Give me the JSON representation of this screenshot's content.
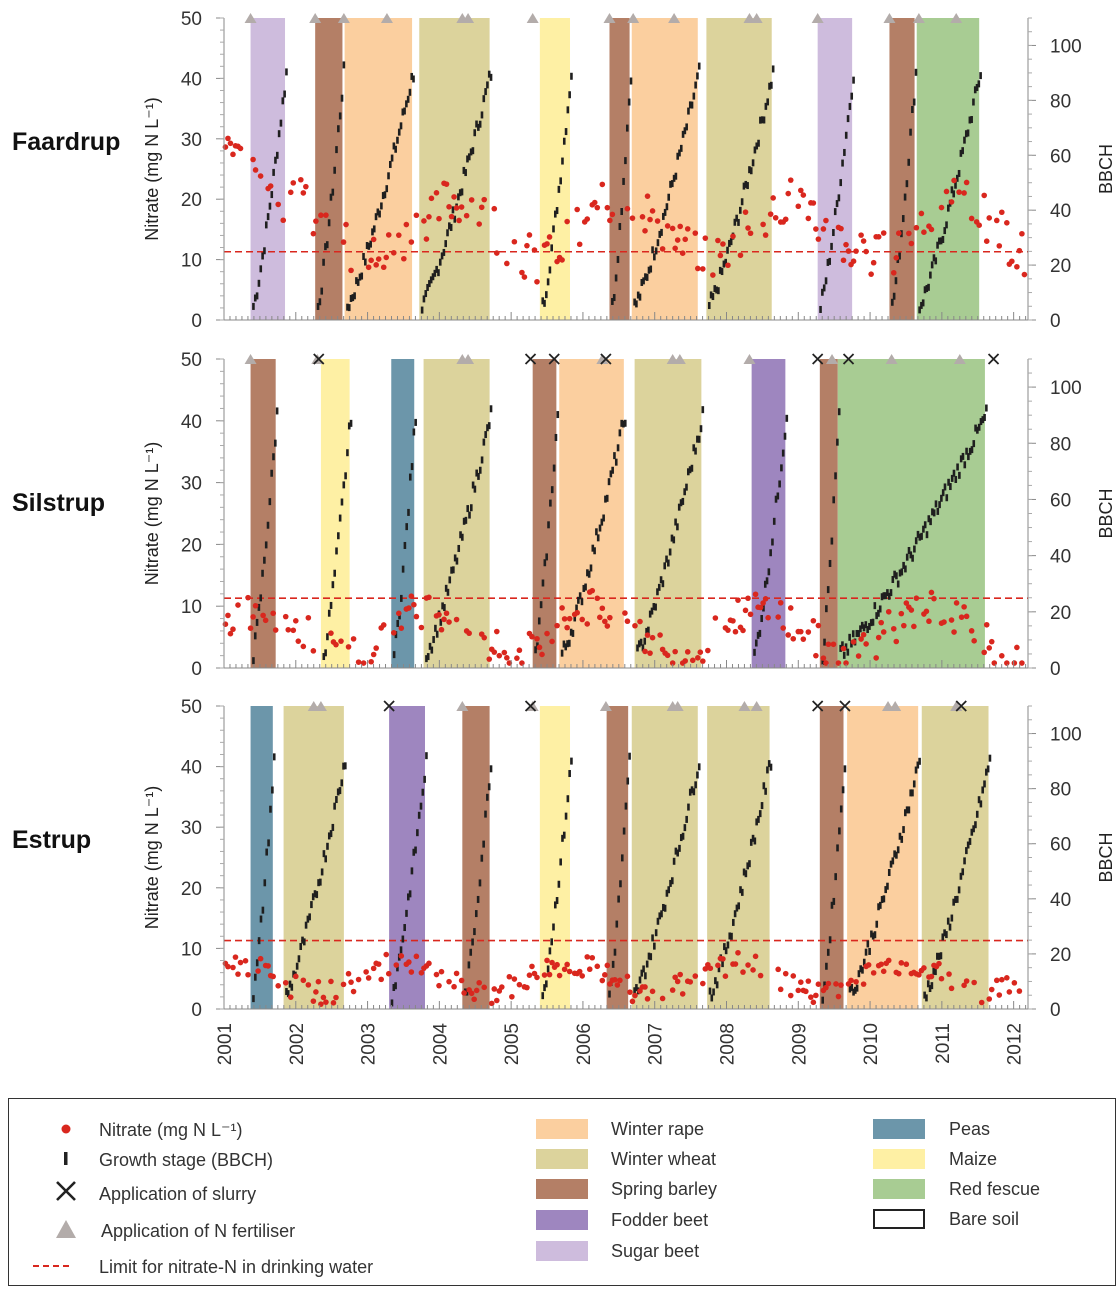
{
  "colors": {
    "winter_rape": "#FBCF9F",
    "winter_wheat": "#DCD39C",
    "spring_barley": "#B47F66",
    "fodder_beet": "#9E86BF",
    "sugar_beet": "#CEBCDD",
    "peas": "#6C96AA",
    "maize": "#FEF0A4",
    "red_fescue": "#A8CC93",
    "nitrate": "#D9271E",
    "limit": "#D9271E",
    "fertiliser": "#B3ACAA"
  },
  "legend": {
    "nitrate": "Nitrate (mg N L⁻¹)",
    "growth": "Growth stage (BBCH)",
    "slurry": "Application of slurry",
    "fertiliser": "Application of N fertiliser",
    "limit": "Limit for nitrate-N in drinking water",
    "crops": {
      "winter_rape": "Winter rape",
      "winter_wheat": "Winter wheat",
      "spring_barley": "Spring barley",
      "fodder_beet": "Fodder beet",
      "sugar_beet": "Sugar beet",
      "peas": "Peas",
      "maize": "Maize",
      "red_fescue": "Red fescue",
      "bare_soil": "Bare soil"
    }
  },
  "chart_data": {
    "type": "scatter",
    "x_axis": {
      "min": 2001,
      "max": 2012.2,
      "ticks": [
        "2001",
        "2002",
        "2003",
        "2004",
        "2005",
        "2006",
        "2007",
        "2008",
        "2009",
        "2010",
        "2011",
        "2012"
      ]
    },
    "y_left": {
      "label": "Nitrate (mg N L⁻¹)",
      "min": 0,
      "max": 50,
      "ticks": [
        0,
        10,
        20,
        30,
        40,
        50
      ]
    },
    "y_right": {
      "label": "BBCH",
      "min": 0,
      "max": 110,
      "ticks": [
        0,
        20,
        40,
        60,
        80,
        100
      ]
    },
    "limit_line": 11.3,
    "panels": [
      {
        "site": "Faardrup",
        "crops": [
          {
            "crop": "sugar_beet",
            "start": 2001.37,
            "end": 2001.85
          },
          {
            "crop": "spring_barley",
            "start": 2002.27,
            "end": 2002.65
          },
          {
            "crop": "winter_rape",
            "start": 2002.68,
            "end": 2003.62
          },
          {
            "crop": "winter_wheat",
            "start": 2003.72,
            "end": 2004.7
          },
          {
            "crop": "maize",
            "start": 2005.4,
            "end": 2005.82
          },
          {
            "crop": "spring_barley",
            "start": 2006.37,
            "end": 2006.65
          },
          {
            "crop": "winter_rape",
            "start": 2006.68,
            "end": 2007.6
          },
          {
            "crop": "winter_wheat",
            "start": 2007.72,
            "end": 2008.63
          },
          {
            "crop": "sugar_beet",
            "start": 2009.27,
            "end": 2009.75
          },
          {
            "crop": "spring_barley",
            "start": 2010.27,
            "end": 2010.62
          },
          {
            "crop": "red_fescue",
            "start": 2010.65,
            "end": 2011.52
          }
        ],
        "fertiliser": [
          2001.37,
          2002.27,
          2002.67,
          2003.27,
          2004.32,
          2004.4,
          2005.3,
          2006.37,
          2006.7,
          2007.27,
          2008.32,
          2008.42,
          2009.27,
          2010.27,
          2010.68,
          2011.2
        ],
        "slurry": []
      },
      {
        "site": "Silstrup",
        "crops": [
          {
            "crop": "spring_barley",
            "start": 2001.37,
            "end": 2001.72
          },
          {
            "crop": "maize",
            "start": 2002.35,
            "end": 2002.75
          },
          {
            "crop": "peas",
            "start": 2003.33,
            "end": 2003.65
          },
          {
            "crop": "winter_wheat",
            "start": 2003.78,
            "end": 2004.7
          },
          {
            "crop": "spring_barley",
            "start": 2005.3,
            "end": 2005.63
          },
          {
            "crop": "winter_rape",
            "start": 2005.67,
            "end": 2006.57
          },
          {
            "crop": "winter_wheat",
            "start": 2006.72,
            "end": 2007.65
          },
          {
            "crop": "fodder_beet",
            "start": 2008.35,
            "end": 2008.82
          },
          {
            "crop": "spring_barley",
            "start": 2009.3,
            "end": 2009.55
          },
          {
            "crop": "red_fescue",
            "start": 2009.55,
            "end": 2011.6
          }
        ],
        "fertiliser": [
          2001.37,
          2002.3,
          2004.32,
          2004.4,
          2006.27,
          2007.25,
          2007.35,
          2008.32,
          2009.47,
          2010.3,
          2011.25
        ],
        "slurry": [
          2002.32,
          2005.27,
          2005.6,
          2006.32,
          2009.27,
          2009.7,
          2011.72
        ]
      },
      {
        "site": "Estrup",
        "crops": [
          {
            "crop": "peas",
            "start": 2001.37,
            "end": 2001.68
          },
          {
            "crop": "winter_wheat",
            "start": 2001.83,
            "end": 2002.67
          },
          {
            "crop": "fodder_beet",
            "start": 2003.3,
            "end": 2003.8
          },
          {
            "crop": "spring_barley",
            "start": 2004.32,
            "end": 2004.7
          },
          {
            "crop": "maize",
            "start": 2005.4,
            "end": 2005.82
          },
          {
            "crop": "spring_barley",
            "start": 2006.33,
            "end": 2006.63
          },
          {
            "crop": "winter_wheat",
            "start": 2006.68,
            "end": 2007.6
          },
          {
            "crop": "winter_wheat",
            "start": 2007.73,
            "end": 2008.6
          },
          {
            "crop": "spring_barley",
            "start": 2009.3,
            "end": 2009.63
          },
          {
            "crop": "winter_rape",
            "start": 2009.68,
            "end": 2010.67
          },
          {
            "crop": "winter_wheat",
            "start": 2010.72,
            "end": 2011.65
          }
        ],
        "fertiliser": [
          2002.25,
          2002.35,
          2004.32,
          2005.3,
          2006.32,
          2007.25,
          2007.32,
          2008.25,
          2008.42,
          2010.25,
          2010.35,
          2011.2
        ],
        "slurry": [
          2003.3,
          2005.27,
          2009.27,
          2009.65,
          2011.27
        ]
      }
    ]
  }
}
